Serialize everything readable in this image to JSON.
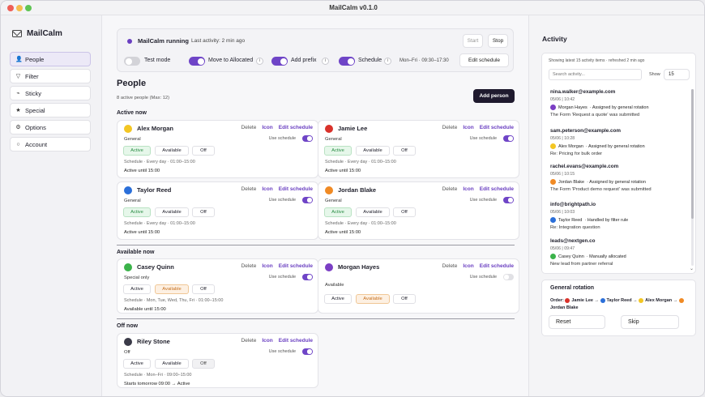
{
  "window": {
    "title": "MailCalm v0.1.0"
  },
  "app": {
    "name": "MailCalm"
  },
  "sidebar": {
    "items": [
      {
        "label": "People",
        "icon": "people-icon",
        "glyph": "👤"
      },
      {
        "label": "Filter",
        "icon": "filter-icon",
        "glyph": "▽"
      },
      {
        "label": "Sticky",
        "icon": "pin-icon",
        "glyph": "⌁"
      },
      {
        "label": "Special",
        "icon": "star-icon",
        "glyph": "★"
      },
      {
        "label": "Options",
        "icon": "gear-icon",
        "glyph": "⚙"
      },
      {
        "label": "Account",
        "icon": "account-icon",
        "glyph": "○"
      }
    ]
  },
  "status": {
    "running": "MailCalm running",
    "last_activity": "Last activity: 2 min ago",
    "start": "Start",
    "stop": "Stop",
    "test_mode": "Test mode",
    "move_allocated": "Move to Allocated",
    "add_prefix": "Add prefix",
    "schedule": "Schedule",
    "schedule_time": "Mon–Fri · 09:30–17:30",
    "edit_schedule": "Edit schedule",
    "info": "i"
  },
  "people": {
    "title": "People",
    "count": "8 active people (Max: 12)",
    "add_person": "Add person",
    "sections": {
      "active": "Active now",
      "available": "Available now",
      "off": "Off now"
    }
  },
  "card_labels": {
    "delete": "Delete",
    "icon": "Icon",
    "edit": "Edit schedule",
    "use_schedule": "Use schedule",
    "active": "Active",
    "available": "Available",
    "off": "Off"
  },
  "cards": [
    {
      "name": "Alex Morgan",
      "color": "#f3c623",
      "mode": "General",
      "schedule": "Schedule · Every day · 01:00–15:00",
      "until": "Active until 15:00"
    },
    {
      "name": "Jamie Lee",
      "color": "#d9322b",
      "mode": "General",
      "schedule": "Schedule · Every day · 01:00–15:00",
      "until": "Active until 15:00"
    },
    {
      "name": "Taylor Reed",
      "color": "#2b6fd9",
      "mode": "General",
      "schedule": "Schedule · Every day · 01:00–15:00",
      "until": "Active until 15:00"
    },
    {
      "name": "Jordan Blake",
      "color": "#f08a24",
      "mode": "General",
      "schedule": "Schedule · Every day · 01:00–15:00",
      "until": "Active until 15:00"
    },
    {
      "name": "Casey Quinn",
      "color": "#3bb34a",
      "mode": "Special only",
      "schedule": "Schedule · Mon, Tue, Wed, Thu, Fri · 01:00–15:00",
      "until": "Available until 15:00"
    },
    {
      "name": "Morgan Hayes",
      "color": "#7b3fc4",
      "mode": "Available",
      "schedule": "",
      "until": ""
    },
    {
      "name": "Riley Stone",
      "color": "#3a3a48",
      "mode": "Off",
      "schedule": "Schedule · Mon–Fri · 09:00–15:00",
      "until": "Starts tomorrow 09:00 → Active"
    }
  ],
  "activity": {
    "title": "Activity",
    "summary": "Showing latest 15 activity items · refreshed 2 min ago",
    "search_placeholder": "Search activity...",
    "show_label": "Show",
    "show_value": "15",
    "entries": [
      {
        "email": "nina.walker@example.com",
        "date": "05/06 | 10:42",
        "who": "Morgan Hayes",
        "color": "#7b3fc4",
        "how": "· Assigned by general rotation",
        "subject": "The Form 'Request a quote' was submitted"
      },
      {
        "email": "sam.peterson@example.com",
        "date": "05/06 | 10:28",
        "who": "Alex Morgan",
        "color": "#f3c623",
        "how": "· Assigned by general rotation",
        "subject": "Re: Pricing for bulk order"
      },
      {
        "email": "rachel.evans@example.com",
        "date": "05/06 | 10:15",
        "who": "Jordan Blake",
        "color": "#f08a24",
        "how": "· Assigned by general rotation",
        "subject": "The Form 'Product demo request' was submitted"
      },
      {
        "email": "info@brightpath.io",
        "date": "05/06 | 10:03",
        "who": "Taylor Reed",
        "color": "#2b6fd9",
        "how": "· Handled by filter rule",
        "subject": "Re: Integration question"
      },
      {
        "email": "leads@nextgen.co",
        "date": "05/06 | 09:47",
        "who": "Casey Quinn",
        "color": "#3bb34a",
        "how": "· Manually allocated",
        "subject": "New lead from partner referral"
      }
    ]
  },
  "rotation": {
    "title": "General rotation",
    "order_label": "Order:",
    "order": [
      "Jamie Lee",
      "Taylor Reed",
      "Alex Morgan",
      "Jordan Blake"
    ],
    "arrow": "→",
    "reset": "Reset",
    "skip": "Skip"
  }
}
